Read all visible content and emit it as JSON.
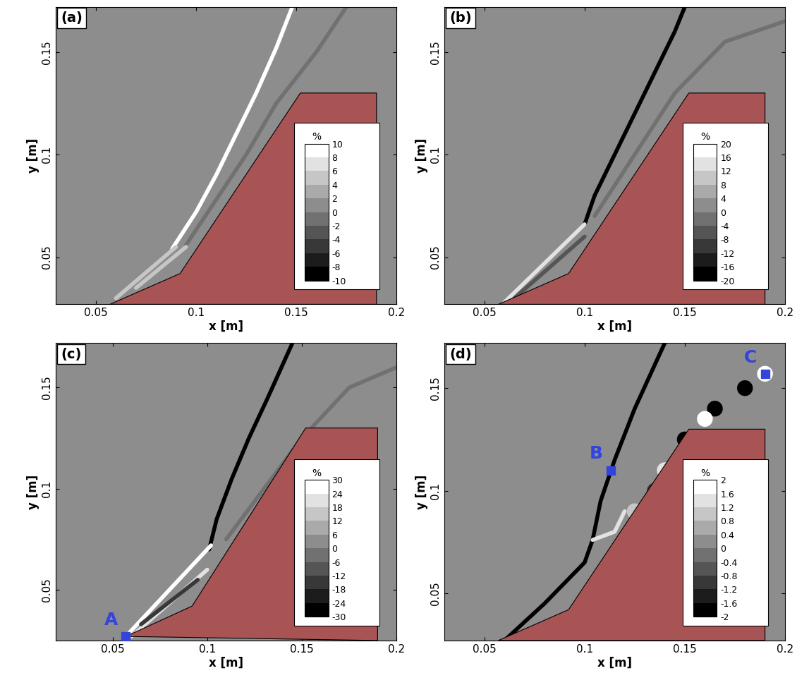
{
  "chart_data": [
    {
      "type": "contour",
      "panel": "(a)",
      "x_label": "x [m]",
      "y_label": "y [m]",
      "xlim": [
        0.03,
        0.2
      ],
      "ylim": [
        0.027,
        0.172
      ],
      "xticks": [
        0.05,
        0.1,
        0.15,
        0.2
      ],
      "yticks": [
        0.05,
        0.1,
        0.15
      ],
      "body": {
        "vertices": [
          [
            0.057,
            0.027
          ],
          [
            0.092,
            0.042
          ],
          [
            0.152,
            0.13
          ],
          [
            0.19,
            0.13
          ],
          [
            0.19,
            0.027
          ]
        ],
        "color": "#a85454"
      },
      "colorbar": {
        "label": "%",
        "range": [
          -10,
          10
        ],
        "ticks": [
          -10,
          -8,
          -6,
          -4,
          -2,
          0,
          2,
          4,
          6,
          8,
          10
        ]
      },
      "features": [
        {
          "value": 10,
          "points": [
            [
              0.088,
              0.054
            ],
            [
              0.1,
              0.072
            ],
            [
              0.11,
              0.09
            ],
            [
              0.12,
              0.11
            ],
            [
              0.13,
              0.13
            ],
            [
              0.14,
              0.152
            ],
            [
              0.148,
              0.172
            ]
          ]
        },
        {
          "value": -2,
          "points": [
            [
              0.095,
              0.056
            ],
            [
              0.11,
              0.078
            ],
            [
              0.125,
              0.1
            ],
            [
              0.14,
              0.125
            ],
            [
              0.16,
              0.15
            ],
            [
              0.175,
              0.172
            ]
          ]
        },
        {
          "value": 4,
          "points": [
            [
              0.06,
              0.03
            ],
            [
              0.09,
              0.055
            ]
          ]
        },
        {
          "value": 4,
          "points": [
            [
              0.07,
              0.035
            ],
            [
              0.095,
              0.055
            ]
          ]
        }
      ],
      "blobs": [],
      "points": []
    },
    {
      "type": "contour",
      "panel": "(b)",
      "x_label": "x [m]",
      "y_label": "y [m]",
      "xlim": [
        0.03,
        0.2
      ],
      "ylim": [
        0.027,
        0.172
      ],
      "xticks": [
        0.05,
        0.1,
        0.15,
        0.2
      ],
      "yticks": [
        0.05,
        0.1,
        0.15
      ],
      "body": {
        "vertices": [
          [
            0.057,
            0.027
          ],
          [
            0.092,
            0.042
          ],
          [
            0.152,
            0.13
          ],
          [
            0.19,
            0.13
          ],
          [
            0.19,
            0.027
          ]
        ],
        "color": "#a85454"
      },
      "colorbar": {
        "label": "%",
        "range": [
          -20,
          20
        ],
        "ticks": [
          -20,
          -16,
          -12,
          -8,
          -4,
          0,
          4,
          8,
          12,
          16,
          20
        ]
      },
      "features": [
        {
          "value": -20,
          "points": [
            [
              0.1,
              0.066
            ],
            [
              0.105,
              0.08
            ],
            [
              0.115,
              0.1
            ],
            [
              0.125,
              0.12
            ],
            [
              0.135,
              0.14
            ],
            [
              0.145,
              0.16
            ],
            [
              0.15,
              0.172
            ]
          ]
        },
        {
          "value": 12,
          "points": [
            [
              0.06,
              0.028
            ],
            [
              0.1,
              0.066
            ]
          ]
        },
        {
          "value": -8,
          "points": [
            [
              0.065,
              0.03
            ],
            [
              0.1,
              0.06
            ]
          ]
        },
        {
          "value": -4,
          "points": [
            [
              0.105,
              0.07
            ],
            [
              0.125,
              0.1
            ],
            [
              0.145,
              0.13
            ],
            [
              0.17,
              0.155
            ],
            [
              0.2,
              0.165
            ]
          ]
        }
      ],
      "blobs": [],
      "points": []
    },
    {
      "type": "contour",
      "panel": "(c)",
      "x_label": "x [m]",
      "y_label": "y [m]",
      "xlim": [
        0.02,
        0.2
      ],
      "ylim": [
        0.025,
        0.172
      ],
      "xticks": [
        0.05,
        0.1,
        0.15,
        0.2
      ],
      "yticks": [
        0.05,
        0.1,
        0.15
      ],
      "body": {
        "vertices": [
          [
            0.057,
            0.027
          ],
          [
            0.092,
            0.042
          ],
          [
            0.152,
            0.13
          ],
          [
            0.19,
            0.13
          ],
          [
            0.19,
            0.025
          ]
        ],
        "color": "#a85454"
      },
      "colorbar": {
        "label": "%",
        "range": [
          -30,
          30
        ],
        "ticks": [
          -30,
          -24,
          -18,
          -12,
          -6,
          0,
          6,
          12,
          18,
          24,
          30
        ]
      },
      "features": [
        {
          "value": -30,
          "points": [
            [
              0.101,
              0.07
            ],
            [
              0.105,
              0.085
            ],
            [
              0.113,
              0.105
            ],
            [
              0.122,
              0.125
            ],
            [
              0.132,
              0.145
            ],
            [
              0.145,
              0.172
            ]
          ]
        },
        {
          "value": 30,
          "points": [
            [
              0.057,
              0.027
            ],
            [
              0.102,
              0.072
            ]
          ]
        },
        {
          "value": 18,
          "points": [
            [
              0.06,
              0.027
            ],
            [
              0.1,
              0.06
            ]
          ]
        },
        {
          "value": -18,
          "points": [
            [
              0.065,
              0.033
            ],
            [
              0.095,
              0.055
            ]
          ]
        },
        {
          "value": -6,
          "points": [
            [
              0.11,
              0.075
            ],
            [
              0.13,
              0.1
            ],
            [
              0.15,
              0.125
            ],
            [
              0.175,
              0.15
            ],
            [
              0.2,
              0.16
            ]
          ]
        }
      ],
      "blobs": [],
      "points": [
        {
          "label": "A",
          "x": 0.057,
          "y": 0.027
        }
      ]
    },
    {
      "type": "contour",
      "panel": "(d)",
      "x_label": "x [m]",
      "y_label": "y [m]",
      "xlim": [
        0.03,
        0.2
      ],
      "ylim": [
        0.027,
        0.172
      ],
      "xticks": [
        0.05,
        0.1,
        0.15,
        0.2
      ],
      "yticks": [
        0.05,
        0.1,
        0.15
      ],
      "body": {
        "vertices": [
          [
            0.057,
            0.027
          ],
          [
            0.092,
            0.042
          ],
          [
            0.152,
            0.13
          ],
          [
            0.19,
            0.13
          ],
          [
            0.19,
            0.027
          ]
        ],
        "color": "#a85454"
      },
      "colorbar": {
        "label": "%",
        "range": [
          -2,
          2
        ],
        "ticks": [
          -2,
          -1.6,
          -1.2,
          -0.8,
          -0.4,
          0,
          0.4,
          0.8,
          1.2,
          1.6,
          2
        ]
      },
      "features": [
        {
          "value": -2,
          "points": [
            [
              0.06,
              0.027
            ],
            [
              0.08,
              0.045
            ],
            [
              0.1,
              0.065
            ],
            [
              0.104,
              0.076
            ]
          ]
        },
        {
          "value": -2,
          "points": [
            [
              0.104,
              0.076
            ],
            [
              0.108,
              0.095
            ],
            [
              0.115,
              0.115
            ],
            [
              0.125,
              0.14
            ],
            [
              0.14,
              0.172
            ]
          ]
        },
        {
          "value": 1.2,
          "points": [
            [
              0.104,
              0.076
            ],
            [
              0.115,
              0.08
            ],
            [
              0.12,
              0.09
            ]
          ]
        }
      ],
      "blobs": [
        {
          "x": 0.18,
          "y": 0.15,
          "value": -2
        },
        {
          "x": 0.19,
          "y": 0.157,
          "value": 2
        },
        {
          "x": 0.165,
          "y": 0.14,
          "value": -2
        },
        {
          "x": 0.16,
          "y": 0.135,
          "value": 2
        },
        {
          "x": 0.15,
          "y": 0.125,
          "value": -2
        },
        {
          "x": 0.14,
          "y": 0.11,
          "value": 1.2
        },
        {
          "x": 0.135,
          "y": 0.1,
          "value": -1.2
        },
        {
          "x": 0.125,
          "y": 0.09,
          "value": 0.8
        }
      ],
      "points": [
        {
          "label": "B",
          "x": 0.113,
          "y": 0.11
        },
        {
          "label": "C",
          "x": 0.19,
          "y": 0.157
        }
      ]
    }
  ]
}
